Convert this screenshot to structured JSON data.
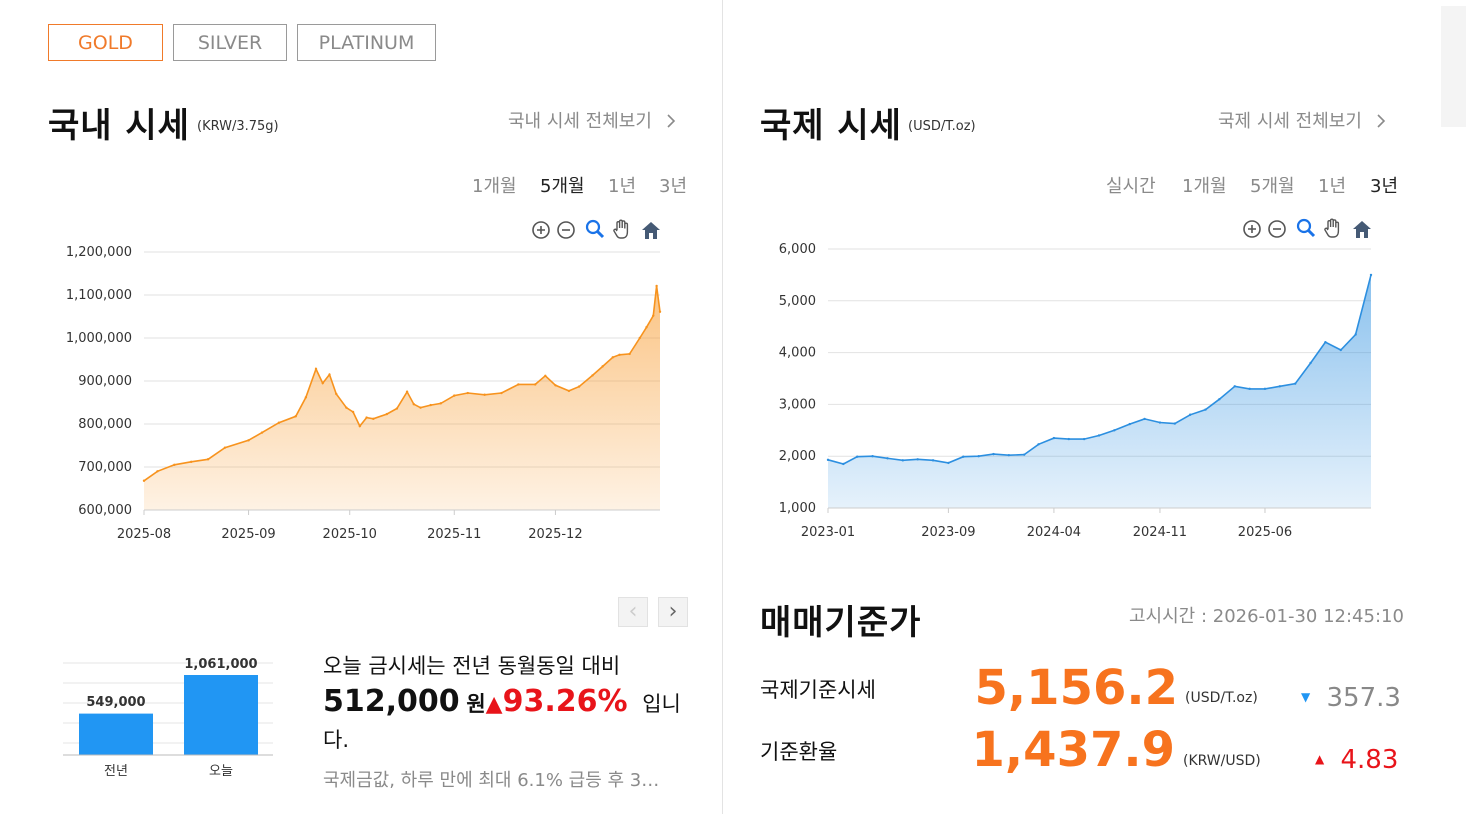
{
  "metal_tabs": [
    {
      "label": "GOLD",
      "active": true
    },
    {
      "label": "SILVER",
      "active": false
    },
    {
      "label": "PLATINUM",
      "active": false
    }
  ],
  "domestic": {
    "title": "국내 시세",
    "unit": "(KRW/3.75g)",
    "view_all": "국내 시세 전체보기",
    "periods": [
      "1개월",
      "5개월",
      "1년",
      "3년"
    ],
    "active_period": "5개월"
  },
  "international": {
    "title": "국제 시세",
    "unit": "(USD/T.oz)",
    "view_all": "국제 시세 전체보기",
    "periods": [
      "실시간",
      "1개월",
      "5개월",
      "1년",
      "3년"
    ],
    "active_period": "3년"
  },
  "chart_tools": [
    "zoom-in-icon",
    "zoom-out-icon",
    "magnifier-icon",
    "pan-hand-icon",
    "home-icon"
  ],
  "chart_data": [
    {
      "type": "area",
      "title": "",
      "xlabel": "",
      "ylabel": "",
      "ylim": [
        600000,
        1200000
      ],
      "yticks": [
        "1,200,000",
        "1,100,000",
        "1,000,000",
        "900,000",
        "800,000",
        "700,000",
        "600,000"
      ],
      "xticks": [
        "2025-08",
        "2025-09",
        "2025-10",
        "2025-11",
        "2025-12"
      ],
      "color": "#f7931e",
      "grid": true,
      "x": [
        "2025-08-01",
        "2025-08-05",
        "2025-08-10",
        "2025-08-15",
        "2025-08-20",
        "2025-08-25",
        "2025-09-01",
        "2025-09-05",
        "2025-09-10",
        "2025-09-15",
        "2025-09-18",
        "2025-09-21",
        "2025-09-23",
        "2025-09-25",
        "2025-09-27",
        "2025-09-30",
        "2025-10-02",
        "2025-10-04",
        "2025-10-06",
        "2025-10-08",
        "2025-10-12",
        "2025-10-15",
        "2025-10-18",
        "2025-10-20",
        "2025-10-22",
        "2025-10-25",
        "2025-10-28",
        "2025-11-01",
        "2025-11-05",
        "2025-11-10",
        "2025-11-15",
        "2025-11-20",
        "2025-11-25",
        "2025-11-28",
        "2025-12-01",
        "2025-12-05",
        "2025-12-08",
        "2025-12-12",
        "2025-12-15",
        "2025-12-18",
        "2025-12-20",
        "2025-12-23",
        "2025-12-26",
        "2025-12-28",
        "2025-12-30",
        "2025-12-31",
        "2026-01-01"
      ],
      "values": [
        668000,
        690000,
        705000,
        712000,
        718000,
        745000,
        762000,
        780000,
        803000,
        818000,
        862000,
        928000,
        895000,
        915000,
        870000,
        838000,
        828000,
        795000,
        815000,
        812000,
        823000,
        836000,
        875000,
        846000,
        838000,
        844000,
        848000,
        866000,
        872000,
        868000,
        872000,
        892000,
        892000,
        912000,
        890000,
        877000,
        887000,
        913000,
        934000,
        955000,
        961000,
        963000,
        1000000,
        1025000,
        1052000,
        1121000,
        1061000
      ]
    },
    {
      "type": "area",
      "title": "",
      "xlabel": "",
      "ylabel": "",
      "ylim": [
        1000,
        6000
      ],
      "yticks": [
        "6,000",
        "5,000",
        "4,000",
        "3,000",
        "2,000",
        "1,000"
      ],
      "xticks": [
        "2023-01",
        "2023-09",
        "2024-04",
        "2024-11",
        "2025-06"
      ],
      "color": "#2c8fe0",
      "grid": true,
      "x": [
        "2023-01",
        "2023-02",
        "2023-03",
        "2023-04",
        "2023-05",
        "2023-06",
        "2023-07",
        "2023-08",
        "2023-09",
        "2023-10",
        "2023-11",
        "2023-12",
        "2024-01",
        "2024-02",
        "2024-03",
        "2024-04",
        "2024-05",
        "2024-06",
        "2024-07",
        "2024-08",
        "2024-09",
        "2024-10",
        "2024-11",
        "2024-12",
        "2025-01",
        "2025-02",
        "2025-03",
        "2025-04",
        "2025-05",
        "2025-06",
        "2025-07",
        "2025-08",
        "2025-09",
        "2025-10",
        "2025-11",
        "2025-12",
        "2026-01"
      ],
      "values": [
        1930,
        1850,
        1990,
        2000,
        1960,
        1920,
        1940,
        1920,
        1870,
        1990,
        2000,
        2040,
        2020,
        2030,
        2230,
        2350,
        2330,
        2330,
        2400,
        2500,
        2620,
        2720,
        2650,
        2630,
        2800,
        2900,
        3100,
        3350,
        3300,
        3300,
        3350,
        3400,
        3800,
        4200,
        4050,
        4350,
        5500
      ]
    },
    {
      "type": "bar",
      "title": "",
      "categories": [
        "전년",
        "오늘"
      ],
      "values": [
        549000,
        1061000
      ],
      "value_labels": [
        "549,000",
        "1,061,000"
      ],
      "color": "#2196f3"
    }
  ],
  "pager": {
    "prev": "‹",
    "next": "›"
  },
  "summary": {
    "line1": "오늘 금시세는 전년 동월동일 대비",
    "diff_amount": "512,000",
    "diff_unit": "원",
    "up_symbol": "▲",
    "diff_percent": "93.26%",
    "suffix": "입니",
    "line3": "다.",
    "news": "국제금값, 하루 만에 최대 6.1% 급등 후 3…"
  },
  "base_price": {
    "title": "매매기준가",
    "notice_time": "고시시간 : 2026-01-30 12:45:10",
    "rows": [
      {
        "label": "국제기준시세",
        "value": "5,156.2",
        "unit": "(USD/T.oz)",
        "direction": "▼",
        "change": "357.3",
        "change_color": "#888888",
        "arrow_color": "#2196f3"
      },
      {
        "label": "기준환율",
        "value": "1,437.9",
        "unit": "(KRW/USD)",
        "direction": "▲",
        "change": "4.83",
        "change_color": "#e8141a",
        "arrow_color": "#e8141a"
      }
    ]
  }
}
